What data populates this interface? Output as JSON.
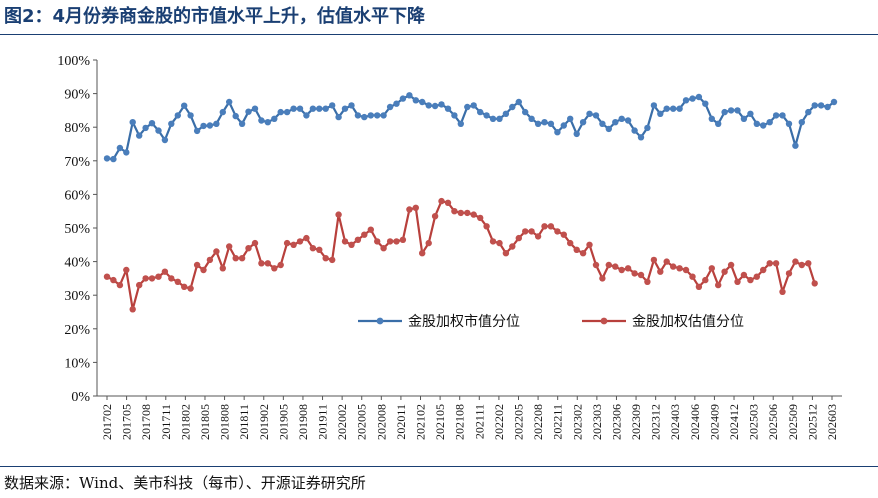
{
  "header": {
    "title": "图2：4月份券商金股的市值水平上升，估值水平下降"
  },
  "footer": {
    "source": "数据来源：Wind、美市科技（每市）、开源证券研究所"
  },
  "chart_data": {
    "type": "line",
    "title": "图2：4月份券商金股的市值水平上升，估值水平下降",
    "xlabel": "",
    "ylabel": "",
    "ylim": [
      0,
      100
    ],
    "yticks": [
      "0%",
      "10%",
      "20%",
      "30%",
      "40%",
      "50%",
      "60%",
      "70%",
      "80%",
      "90%",
      "100%"
    ],
    "xtick_labels": [
      "201702",
      "201705",
      "201708",
      "201711",
      "201802",
      "201805",
      "201808",
      "201811",
      "201902",
      "201905",
      "201908",
      "201911",
      "202002",
      "202005",
      "202008",
      "202011",
      "202102",
      "202105",
      "202108",
      "202111",
      "202202",
      "202205",
      "202208",
      "202211",
      "202302",
      "202303",
      "202306",
      "202309",
      "202312",
      "202403",
      "202406",
      "202409",
      "202412",
      "202503",
      "202506",
      "202509",
      "202512",
      "202603"
    ],
    "legend_position": "center-right",
    "series": [
      {
        "name": "金股加权市值分位",
        "color": "#4a7ebb",
        "line_color": "#3a6ea8",
        "values": [
          70.7,
          70.5,
          73.8,
          72.5,
          81.5,
          77.5,
          79.8,
          81.2,
          79.0,
          76.2,
          81.0,
          83.5,
          86.4,
          83.5,
          78.9,
          80.4,
          80.5,
          81.0,
          84.5,
          87.5,
          83.3,
          81.0,
          84.6,
          85.5,
          82.0,
          81.5,
          82.5,
          84.5,
          84.5,
          85.5,
          85.5,
          83.5,
          85.5,
          85.5,
          85.5,
          86.5,
          83.0,
          85.5,
          86.5,
          83.5,
          83.0,
          83.5,
          83.5,
          83.5,
          86.0,
          87.0,
          88.5,
          89.5,
          88.0,
          87.5,
          86.5,
          86.3,
          86.8,
          85.5,
          83.5,
          81.0,
          86.0,
          86.5,
          84.5,
          83.5,
          82.5,
          82.5,
          84.0,
          86.0,
          87.5,
          84.5,
          82.5,
          81.0,
          81.5,
          81.0,
          78.5,
          80.5,
          82.5,
          78.0,
          81.5,
          84.0,
          83.5,
          81.0,
          79.5,
          81.5,
          82.5,
          82.0,
          79.0,
          77.0,
          79.8,
          86.5,
          84.0,
          85.5,
          85.5,
          85.5,
          88.0,
          88.5,
          89.0,
          87.0,
          82.5,
          81.0,
          84.5,
          85.0,
          85.0,
          82.5,
          84.0,
          81.0,
          80.5,
          81.5,
          83.5,
          83.5,
          81.0,
          74.5,
          81.5,
          84.5,
          86.5,
          86.5,
          86.0,
          87.5
        ]
      },
      {
        "name": "金股加权估值分位",
        "color": "#c0504d",
        "line_color": "#b8403c",
        "values": [
          35.5,
          34.5,
          33.0,
          37.5,
          25.8,
          33.0,
          35.0,
          35.0,
          35.5,
          37.0,
          35.0,
          34.0,
          32.5,
          32.0,
          39.0,
          37.5,
          40.5,
          43.0,
          38.0,
          44.5,
          41.0,
          41.0,
          44.0,
          45.5,
          39.5,
          39.5,
          38.0,
          39.0,
          45.5,
          45.0,
          46.0,
          47.0,
          44.0,
          43.5,
          41.0,
          40.5,
          54.0,
          46.0,
          45.0,
          46.5,
          48.0,
          49.5,
          46.0,
          44.0,
          46.0,
          46.0,
          46.5,
          55.5,
          56.0,
          42.5,
          45.5,
          53.5,
          58.0,
          57.5,
          55.0,
          54.5,
          54.5,
          54.0,
          53.0,
          50.5,
          46.0,
          45.5,
          42.5,
          44.5,
          47.0,
          49.0,
          49.0,
          47.5,
          50.5,
          50.5,
          49.0,
          48.0,
          45.5,
          43.5,
          42.5,
          45.0,
          39.0,
          35.0,
          39.0,
          38.5,
          37.5,
          38.0,
          36.5,
          36.0,
          34.0,
          40.5,
          37.0,
          40.0,
          38.5,
          38.0,
          37.5,
          35.5,
          32.5,
          34.5,
          38.0,
          33.0,
          37.0,
          39.0,
          34.0,
          36.0,
          34.5,
          35.5,
          37.5,
          39.5,
          39.5,
          31.0,
          36.5,
          40.0,
          39.0,
          39.5,
          33.5
        ]
      }
    ]
  }
}
